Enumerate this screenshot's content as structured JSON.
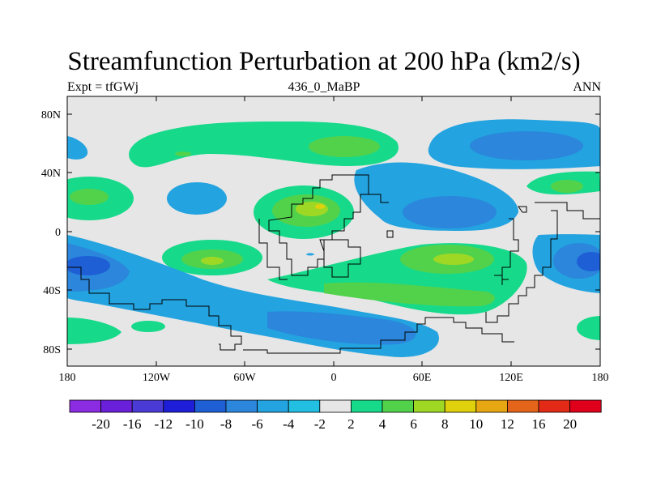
{
  "chart_data": {
    "type": "heatmap",
    "title": "Streamfunction Perturbation at 200 hPa (km2/s)",
    "left_label": "Expt = tfGWj",
    "center_label": "436_0_MaBP",
    "right_label": "ANN",
    "x_ticks": [
      "180",
      "120W",
      "60W",
      "0",
      "60E",
      "120E",
      "180"
    ],
    "y_ticks": [
      "80N",
      "40N",
      "0",
      "40S",
      "80S"
    ],
    "xlim": [
      -180,
      180
    ],
    "ylim": [
      -90,
      90
    ],
    "colorbar": {
      "labels": [
        "-20",
        "-16",
        "-12",
        "-10",
        "-8",
        "-6",
        "-4",
        "-2",
        "2",
        "4",
        "6",
        "8",
        "10",
        "12",
        "16",
        "20"
      ],
      "colors": [
        "#8b2be2",
        "#6a1fd9",
        "#4b3bd6",
        "#1e1ed8",
        "#1e5fd6",
        "#2b86dc",
        "#23a3df",
        "#22bfe3",
        "#e6e6e6",
        "#17d98a",
        "#52d24b",
        "#9fd824",
        "#dfd20c",
        "#e6a713",
        "#e4651a",
        "#e32a17",
        "#e0001c"
      ]
    },
    "features": [
      {
        "name": "n-pacific-positive",
        "sign": "positive",
        "level": 6
      },
      {
        "name": "n-atlantic-africa-positive",
        "sign": "positive",
        "level": 8
      },
      {
        "name": "n-atlantic-negative",
        "sign": "negative",
        "level": -4
      },
      {
        "name": "s-pacific-positive",
        "sign": "positive",
        "level": 8
      },
      {
        "name": "s-indian-positive",
        "sign": "positive",
        "level": 8
      },
      {
        "name": "asia-negative",
        "sign": "negative",
        "level": -6
      },
      {
        "name": "s-pacific-negative-band",
        "sign": "negative",
        "level": -8
      },
      {
        "name": "s-indian-negative",
        "sign": "negative",
        "level": -6
      }
    ]
  }
}
